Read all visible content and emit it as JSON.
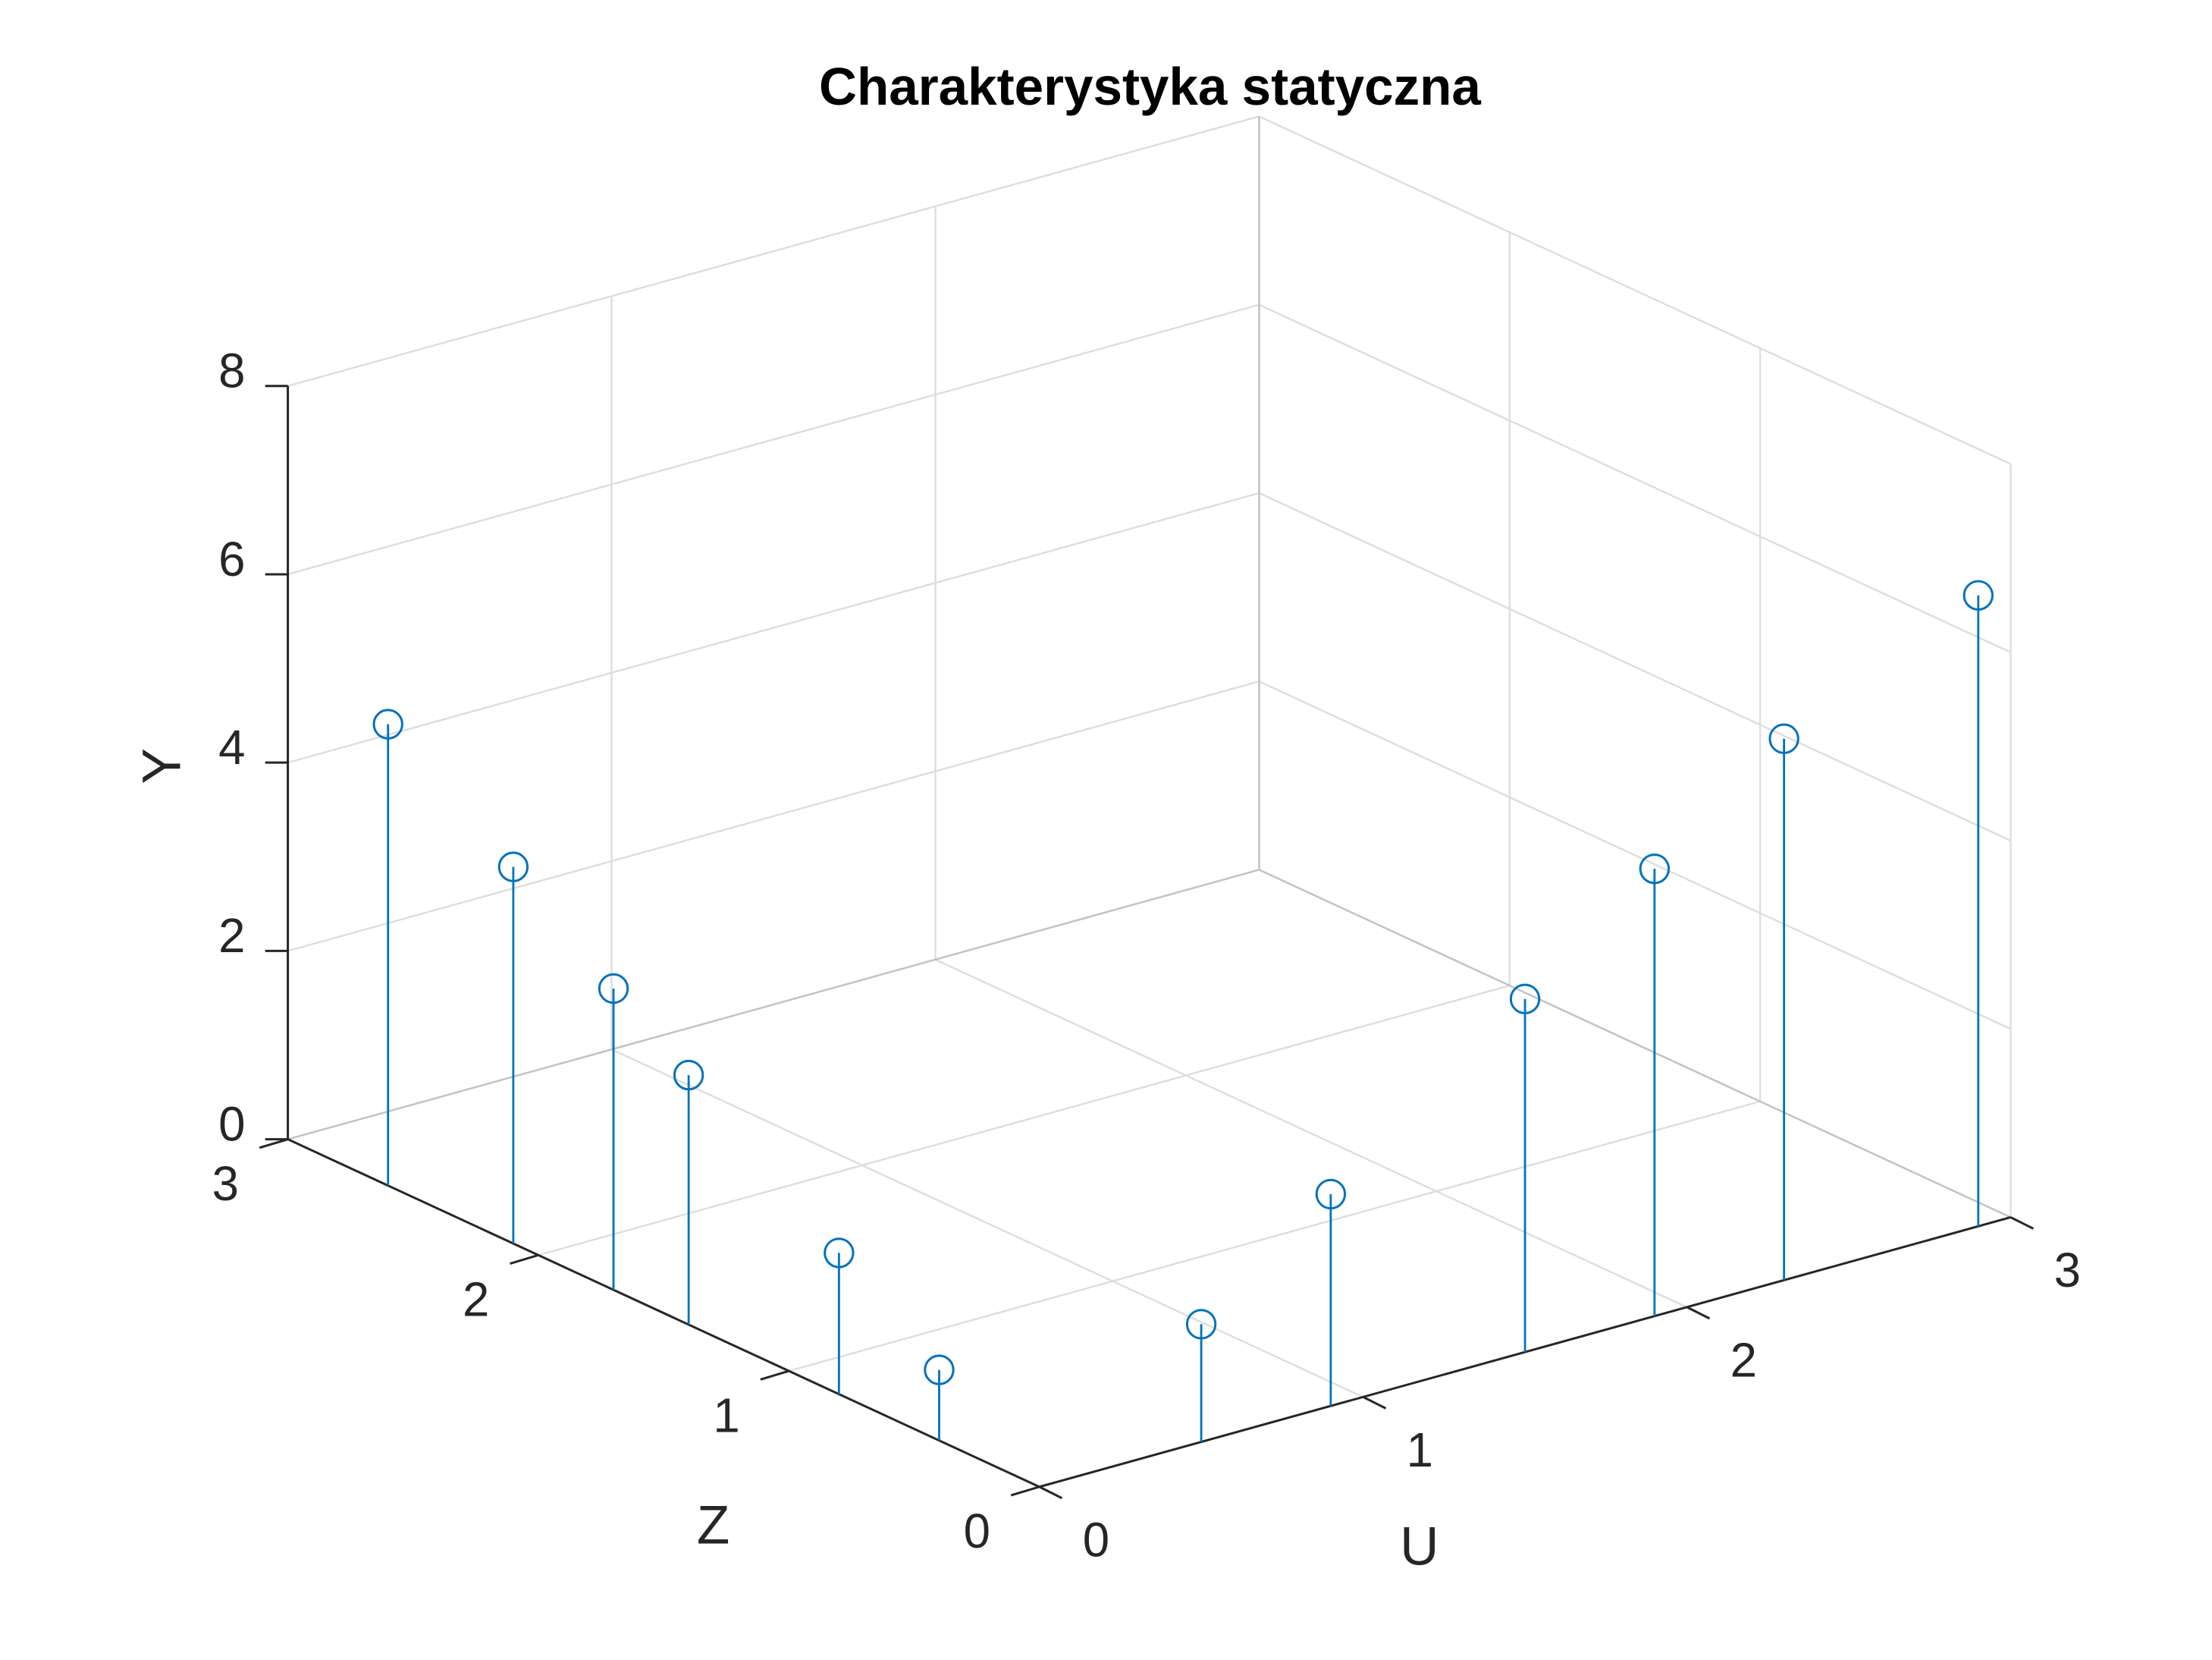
{
  "chart_data": {
    "type": "stem3",
    "title": "Charakterystyka statyczna",
    "xlabel": "U",
    "ylabel": "Z",
    "zlabel": "Y",
    "xlim": [
      0,
      3
    ],
    "ylim": [
      0,
      3
    ],
    "zlim": [
      0,
      8
    ],
    "xticks": [
      0,
      1,
      2,
      3
    ],
    "yticks": [
      0,
      1,
      2,
      3
    ],
    "zticks": [
      0,
      2,
      4,
      6,
      8
    ],
    "grid": true,
    "series": [
      {
        "color": "#0072bd",
        "x": [
          0,
          0,
          0,
          0,
          0,
          0,
          0.5,
          0.9,
          1.5,
          1.9,
          2.3,
          2.9
        ],
        "y": [
          2.6,
          2.1,
          1.7,
          1.4,
          0.8,
          0.4,
          0,
          0,
          0,
          0,
          0,
          0
        ],
        "z": [
          4.9,
          4.0,
          3.2,
          2.65,
          1.5,
          0.75,
          1.25,
          2.25,
          3.75,
          4.75,
          5.75,
          6.7
        ]
      }
    ]
  }
}
